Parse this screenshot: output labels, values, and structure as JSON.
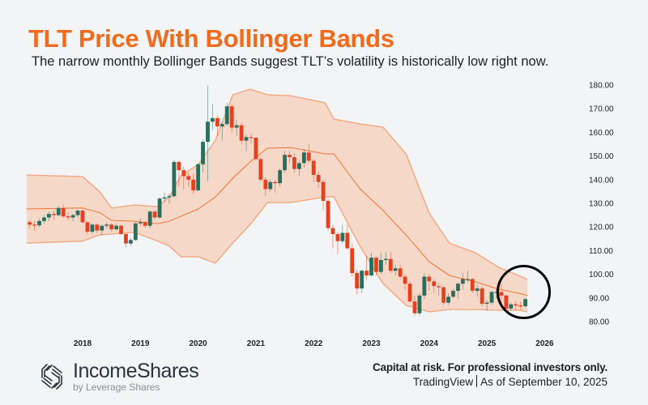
{
  "header": {
    "title": "TLT Price With Bollinger Bands",
    "subtitle": "The narrow monthly Bollinger Bands suggest TLT’s volatility is historically low right now."
  },
  "footer": {
    "brand": "IncomeShares",
    "byline": "by Leverage Shares",
    "disclaimer": "Capital at risk. For professional investors only.",
    "source": "TradingView",
    "as_of": "As of September 10, 2025"
  },
  "colors": {
    "title": "#f26a1b",
    "up": "#2a6e5e",
    "down": "#e5401f",
    "band_fill": "#f5d8c8",
    "band_line": "#f5a27a",
    "basis_line": "#f07532",
    "highlight_circle": "#000000"
  },
  "chart_data": {
    "type": "candlestick",
    "title": "TLT Price With Bollinger Bands",
    "interval": "monthly",
    "start": "2017-02",
    "ylim": [
      80,
      180
    ],
    "y_ticks": [
      "180.00",
      "170.00",
      "160.00",
      "150.00",
      "140.00",
      "130.00",
      "120.00",
      "110.00",
      "100.00",
      "90.00",
      "80.00"
    ],
    "x_ticks": [
      "2018",
      "2019",
      "2020",
      "2021",
      "2022",
      "2023",
      "2024",
      "2025",
      "2026"
    ],
    "annotation": "circle around latest candles (narrow bands)",
    "ohlc": [
      [
        122,
        123,
        119.5,
        121
      ],
      [
        121,
        122.5,
        118.5,
        120.7
      ],
      [
        120.7,
        123.5,
        120,
        122.5
      ],
      [
        122.5,
        125,
        121.5,
        124
      ],
      [
        124,
        126.5,
        122.5,
        125.5
      ],
      [
        125.5,
        127,
        123,
        125
      ],
      [
        125,
        129,
        124.5,
        128
      ],
      [
        128,
        129.5,
        124,
        124.5
      ],
      [
        124.5,
        126,
        123,
        124
      ],
      [
        124,
        125.5,
        122.5,
        125
      ],
      [
        125,
        127.5,
        124,
        126.9
      ],
      [
        126.9,
        127.5,
        121.5,
        122
      ],
      [
        122,
        122.5,
        117,
        118
      ],
      [
        118,
        121.5,
        117,
        121
      ],
      [
        121,
        121.5,
        117.5,
        118.5
      ],
      [
        118.5,
        121,
        116.5,
        120.5
      ],
      [
        120.5,
        122,
        119.5,
        121
      ],
      [
        121,
        121.5,
        118,
        119
      ],
      [
        119,
        121.5,
        118.5,
        120.5
      ],
      [
        120.5,
        121,
        116.5,
        117
      ],
      [
        117,
        117.5,
        111.5,
        113
      ],
      [
        113,
        115.5,
        112,
        114.5
      ],
      [
        114.5,
        122,
        114,
        121.5
      ],
      [
        121.5,
        123.5,
        120.5,
        122
      ],
      [
        122,
        122.5,
        119.5,
        120.5
      ],
      [
        120.5,
        127,
        119.5,
        126.5
      ],
      [
        126.5,
        127,
        123,
        124
      ],
      [
        124,
        132.5,
        123.5,
        132
      ],
      [
        132,
        134.5,
        130.5,
        132.5
      ],
      [
        132.5,
        134,
        130,
        133
      ],
      [
        133,
        148.5,
        132.5,
        147.5
      ],
      [
        147.5,
        148,
        137,
        144
      ],
      [
        144,
        145.5,
        136,
        141.5
      ],
      [
        141.5,
        143,
        137,
        140
      ],
      [
        140,
        142.5,
        134,
        135.5
      ],
      [
        135.5,
        147,
        135,
        146.5
      ],
      [
        146.5,
        157,
        143,
        156
      ],
      [
        156,
        179.7,
        139.5,
        164.5
      ],
      [
        164.5,
        172,
        161,
        166
      ],
      [
        166,
        167,
        158.5,
        162.5
      ],
      [
        162.5,
        164.5,
        156.5,
        163.5
      ],
      [
        163.5,
        172.5,
        162.5,
        171
      ],
      [
        171,
        172,
        160,
        162
      ],
      [
        162,
        165,
        158.5,
        163
      ],
      [
        163,
        164,
        155,
        156.5
      ],
      [
        156.5,
        159,
        152,
        158
      ],
      [
        158,
        159.5,
        155,
        157.7
      ],
      [
        157.7,
        158,
        148,
        148.7
      ],
      [
        148.7,
        149.5,
        139,
        140
      ],
      [
        140,
        141,
        133,
        136
      ],
      [
        136,
        140,
        135,
        139
      ],
      [
        139,
        140,
        134.5,
        138.5
      ],
      [
        138.5,
        145,
        137,
        144
      ],
      [
        144,
        152,
        143,
        150.5
      ],
      [
        150.5,
        152,
        147,
        149.5
      ],
      [
        149.5,
        151,
        143,
        144.5
      ],
      [
        144.5,
        148,
        141.5,
        147
      ],
      [
        147,
        153,
        145,
        151.5
      ],
      [
        151.5,
        155,
        147,
        148
      ],
      [
        148,
        149,
        139,
        142
      ],
      [
        142,
        143.5,
        136.5,
        139
      ],
      [
        139,
        140,
        127,
        131
      ],
      [
        131,
        132,
        118.5,
        119.5
      ],
      [
        119.5,
        121,
        111,
        117
      ],
      [
        117,
        118,
        108.5,
        114
      ],
      [
        114,
        121,
        113,
        117.5
      ],
      [
        117.5,
        121,
        110.5,
        111
      ],
      [
        111,
        113,
        99,
        100.5
      ],
      [
        100.5,
        102,
        91.5,
        94
      ],
      [
        94,
        102,
        92,
        101.5
      ],
      [
        101.5,
        108,
        97.5,
        99.5
      ],
      [
        99.5,
        109,
        99,
        107
      ],
      [
        107,
        107.5,
        99.5,
        101
      ],
      [
        101,
        109,
        100,
        106
      ],
      [
        106,
        109.5,
        104,
        106.5
      ],
      [
        106.5,
        109.5,
        100.5,
        101.5
      ],
      [
        101.5,
        104,
        99.5,
        102.5
      ],
      [
        102.5,
        104,
        98,
        99
      ],
      [
        99,
        100,
        93.5,
        96
      ],
      [
        96,
        97,
        88,
        88.5
      ],
      [
        88.5,
        91,
        82.5,
        83.5
      ],
      [
        83.5,
        92,
        82.5,
        91
      ],
      [
        91,
        100.5,
        89.5,
        99
      ],
      [
        99,
        100,
        93,
        97
      ],
      [
        97,
        98,
        92,
        95
      ],
      [
        95,
        96.5,
        91,
        94.5
      ],
      [
        94.5,
        95,
        87,
        88
      ],
      [
        88,
        92,
        87,
        90.5
      ],
      [
        90.5,
        94,
        90,
        93
      ],
      [
        93,
        96.5,
        89.5,
        96
      ],
      [
        96,
        100.5,
        93.5,
        98
      ],
      [
        98,
        101.5,
        96.5,
        98
      ],
      [
        98,
        98.5,
        92,
        93
      ],
      [
        93,
        95.5,
        90.5,
        94
      ],
      [
        94,
        95,
        86.5,
        87.5
      ],
      [
        87.5,
        89,
        84.5,
        88
      ],
      [
        88,
        93,
        87,
        92.5
      ],
      [
        92.5,
        94,
        89.5,
        92.5
      ],
      [
        92.5,
        96,
        88,
        91
      ],
      [
        91,
        91.5,
        85,
        85.5
      ],
      [
        85.5,
        88,
        84.5,
        87.3
      ],
      [
        87.3,
        88.5,
        84.8,
        86.8
      ],
      [
        86.8,
        88.5,
        85,
        86.5
      ],
      [
        86.5,
        90,
        86,
        89.5
      ]
    ],
    "bollinger": {
      "t": [
        2017.03,
        2018.0,
        2018.3,
        2018.5,
        2018.9,
        2019.3,
        2019.5,
        2019.7,
        2020.0,
        2020.3,
        2020.6,
        2020.9,
        2021.2,
        2021.6,
        2022.2,
        2022.35,
        2022.8,
        2023.2,
        2023.6,
        2024.0,
        2024.35,
        2024.8,
        2025.2,
        2025.55,
        2025.7
      ],
      "upper": [
        142,
        141.3,
        134.8,
        128,
        129.3,
        128.6,
        132.7,
        141.6,
        146.4,
        156.7,
        175.9,
        178.3,
        175.9,
        175.5,
        172.5,
        165.6,
        163.6,
        162.2,
        150.9,
        125.9,
        113.2,
        109.1,
        103,
        99.5,
        97.8
      ],
      "basis": [
        127.6,
        128,
        126,
        122.8,
        122.4,
        121.4,
        122.4,
        124.5,
        127.6,
        132.7,
        140.6,
        147.5,
        153.3,
        153.6,
        150.9,
        150.9,
        136.2,
        127,
        116.6,
        105.3,
        99.5,
        96.8,
        93.7,
        92,
        91
      ],
      "lower": [
        113.2,
        114,
        116.7,
        117,
        117.7,
        114,
        112,
        107.4,
        107.4,
        104.7,
        113.2,
        121,
        130.3,
        130.3,
        132.7,
        132.7,
        112,
        96.1,
        86.8,
        84.1,
        85.1,
        85.1,
        84.8,
        84.8,
        84.1
      ]
    }
  }
}
